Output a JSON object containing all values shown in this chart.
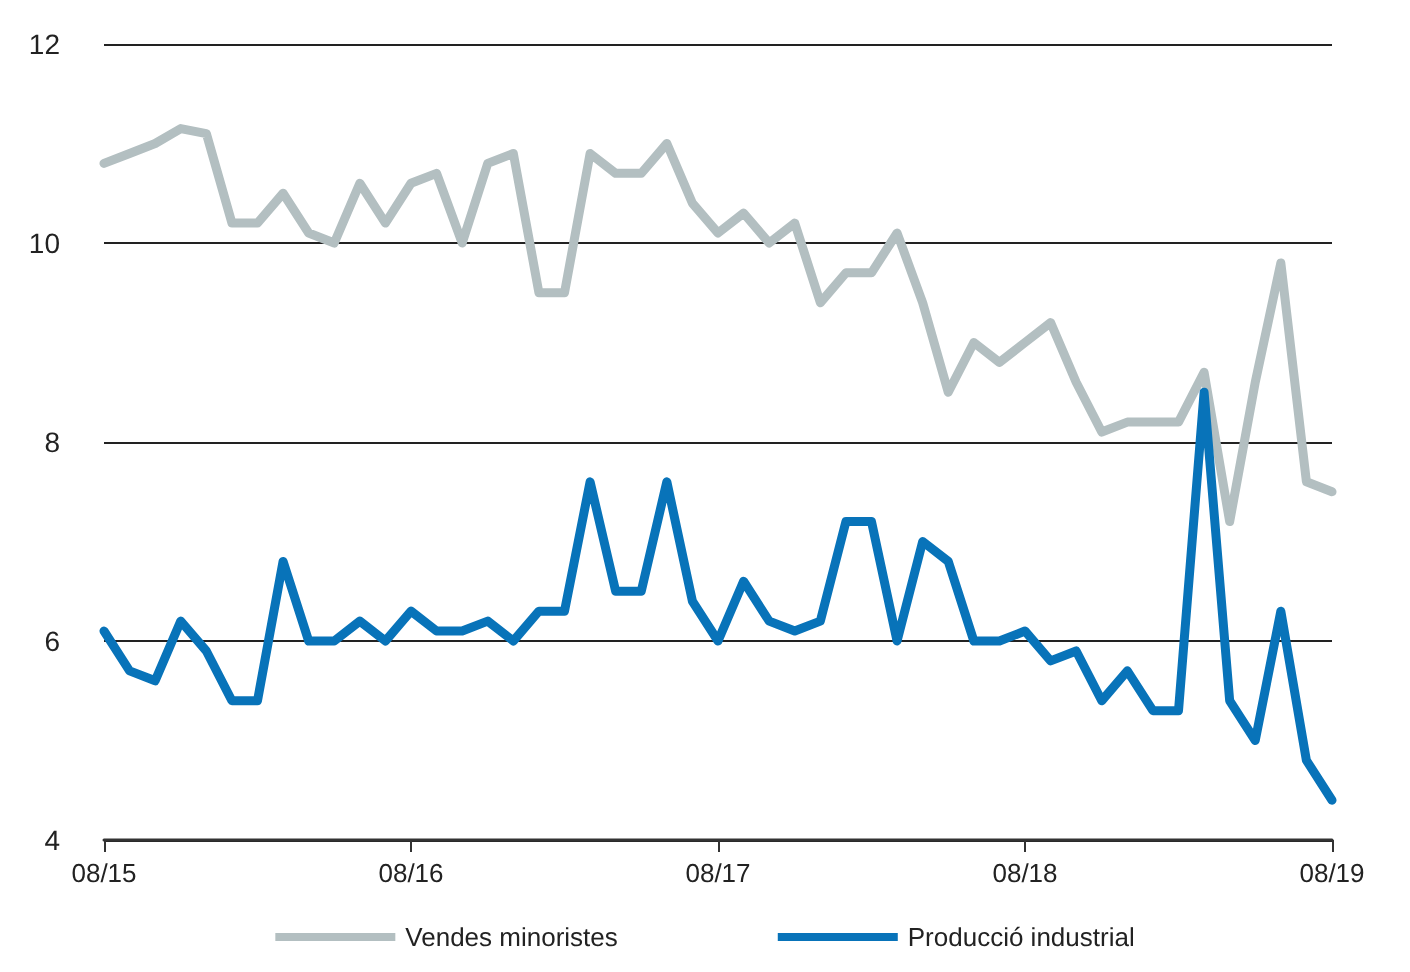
{
  "chart_data": {
    "type": "line",
    "categories": [
      "08/15",
      null,
      null,
      null,
      null,
      null,
      null,
      null,
      null,
      null,
      null,
      null,
      "08/16",
      null,
      null,
      null,
      null,
      null,
      null,
      null,
      null,
      null,
      null,
      null,
      "08/17",
      null,
      null,
      null,
      null,
      null,
      null,
      null,
      null,
      null,
      null,
      null,
      "08/18",
      null,
      null,
      null,
      null,
      null,
      null,
      null,
      null,
      null,
      null,
      null,
      "08/19"
    ],
    "series": [
      {
        "name": "Vendes minoristes",
        "color": "#b3bfc1",
        "values": [
          10.8,
          10.9,
          11.0,
          11.15,
          11.1,
          10.2,
          10.2,
          10.5,
          10.1,
          10.0,
          10.6,
          10.2,
          10.6,
          10.7,
          10.0,
          10.8,
          10.9,
          9.5,
          9.5,
          10.9,
          10.7,
          10.7,
          11.0,
          10.4,
          10.1,
          10.3,
          10.0,
          10.2,
          9.4,
          9.7,
          9.7,
          10.1,
          9.4,
          8.5,
          9.0,
          8.8,
          9.0,
          9.2,
          8.6,
          8.1,
          8.2,
          8.2,
          8.2,
          8.7,
          7.2,
          8.6,
          9.8,
          7.6,
          7.5
        ]
      },
      {
        "name": "Producció industrial",
        "color": "#0873b9",
        "values": [
          6.1,
          5.7,
          5.6,
          6.2,
          5.9,
          5.4,
          5.4,
          6.8,
          6.0,
          6.0,
          6.2,
          6.0,
          6.3,
          6.1,
          6.1,
          6.2,
          6.0,
          6.3,
          6.3,
          7.6,
          6.5,
          6.5,
          7.6,
          6.4,
          6.0,
          6.6,
          6.2,
          6.1,
          6.2,
          7.2,
          7.2,
          6.0,
          7.0,
          6.8,
          6.0,
          6.0,
          6.1,
          5.8,
          5.9,
          5.4,
          5.7,
          5.3,
          5.3,
          8.5,
          5.4,
          5.0,
          6.3,
          4.8,
          4.4
        ]
      }
    ],
    "ylim": [
      4,
      12
    ],
    "yticks": [
      4,
      6,
      8,
      10,
      12
    ],
    "grid": "y",
    "legend": "bottom",
    "marker": "none",
    "line_style": "solid"
  }
}
